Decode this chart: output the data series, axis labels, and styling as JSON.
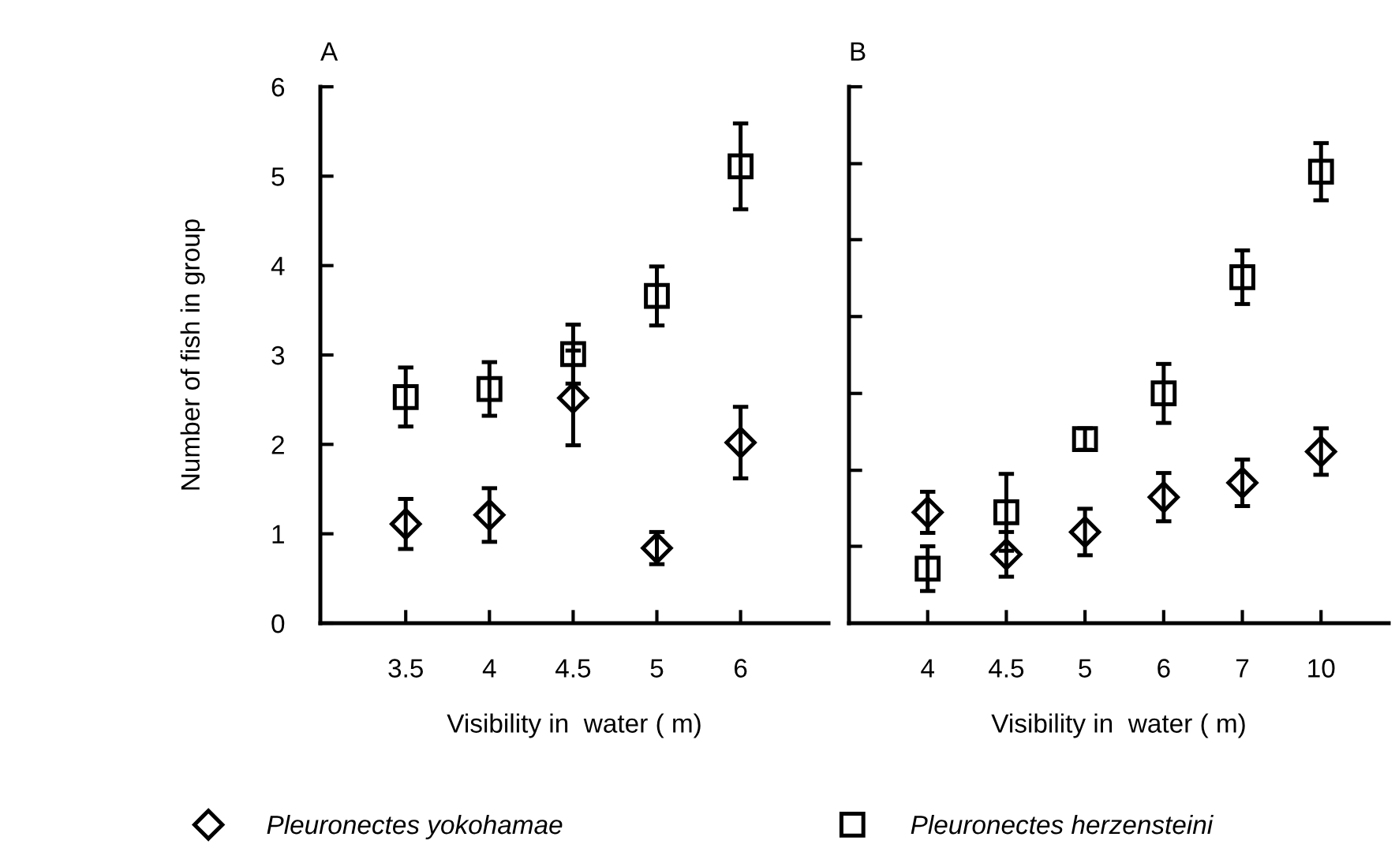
{
  "chart_data": [
    {
      "type": "scatter",
      "title": "A",
      "xlabel": "Visibility in  water ( m)",
      "ylabel": "Number of fish in group",
      "categories": [
        "3.5",
        "4",
        "4.5",
        "5",
        "6"
      ],
      "ylim": [
        0,
        6
      ],
      "yticks": [
        0,
        1,
        2,
        3,
        4,
        5,
        6
      ],
      "legend": "bottom",
      "series": [
        {
          "name": "Pleuronectes yokohamae",
          "color": "#000000",
          "marker": "diamond",
          "values": [
            1.11,
            1.21,
            2.52,
            0.84,
            2.02
          ],
          "errors": [
            0.28,
            0.3,
            0.53,
            0.18,
            0.4
          ]
        },
        {
          "name": "Pleuronectes herzensteini",
          "color": "#000000",
          "marker": "square",
          "values": [
            2.53,
            2.62,
            3.01,
            3.66,
            5.11
          ],
          "errors": [
            0.33,
            0.3,
            0.33,
            0.33,
            0.48
          ]
        }
      ]
    },
    {
      "type": "scatter",
      "title": "B",
      "xlabel": "Visibility in  water ( m)",
      "categories": [
        "4",
        "4.5",
        "5",
        "6",
        "7",
        "10"
      ],
      "ylim": [
        0,
        6
      ],
      "yticks": [
        {
          "value": 0.86,
          "label": null
        },
        {
          "value": 1.71,
          "label": null
        },
        {
          "value": 2.57,
          "label": null
        },
        {
          "value": 3.43,
          "label": null
        },
        {
          "value": 4.29,
          "label": null
        },
        {
          "value": 5.14,
          "label": null
        },
        {
          "value": 6,
          "label": null
        }
      ],
      "tick_labels": "x",
      "series": [
        {
          "color": "#000000",
          "marker": "diamond",
          "values": [
            1.24,
            0.77,
            1.02,
            1.41,
            1.57,
            1.92
          ],
          "errors": [
            0.23,
            0.25,
            0.26,
            0.27,
            0.26,
            0.26
          ]
        },
        {
          "color": "#000000",
          "marker": "square",
          "values": [
            0.61,
            1.24,
            2.06,
            2.57,
            3.87,
            5.05
          ],
          "errors": [
            0.25,
            0.43,
            0.12,
            0.33,
            0.3,
            0.32
          ]
        }
      ]
    }
  ]
}
